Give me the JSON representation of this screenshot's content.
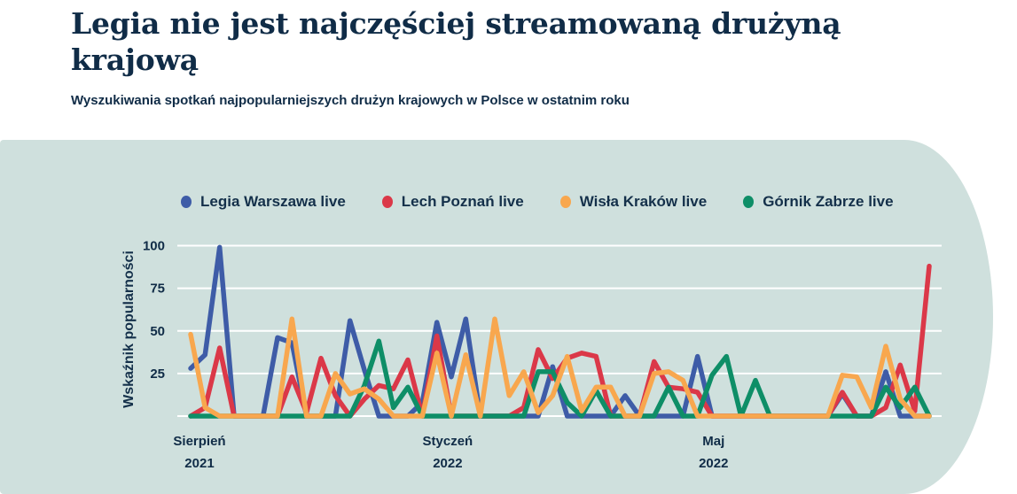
{
  "header": {
    "title": "Legia nie jest najczęściej streamowaną drużyną krajową",
    "subtitle": "Wyszukiwania spotkań najpopularniejszych drużyn krajowych w Polsce w ostatnim roku"
  },
  "colors": {
    "text_navy": "#102c47",
    "panel_background": "#cfe0dd",
    "gridline": "#ffffff",
    "legia_blue": "#3e5ca7",
    "lech_red": "#db3848",
    "wisla_orange": "#f8a74e",
    "gornik_green": "#0e8e67"
  },
  "chart_data": {
    "type": "line",
    "title": "",
    "xlabel": "",
    "ylabel": "Wskaźnik popularności",
    "ylim": [
      0,
      100
    ],
    "yticks": [
      25,
      50,
      75,
      100
    ],
    "grid": true,
    "legend_position": "top",
    "x_unit": "week",
    "x_axis_labels": [
      {
        "month": "Sierpień",
        "year": "2021",
        "pos": 0.012
      },
      {
        "month": "Styczeń",
        "year": "2022",
        "pos": 0.348
      },
      {
        "month": "Maj",
        "year": "2022",
        "pos": 0.708
      }
    ],
    "draw_order": [
      0,
      1,
      3,
      2
    ],
    "series": [
      {
        "name": "Legia Warszawa live",
        "color": "#3e5ca7",
        "values": [
          28,
          36,
          99,
          0,
          0,
          0,
          46,
          43,
          0,
          0,
          0,
          56,
          27,
          0,
          0,
          0,
          8,
          55,
          23,
          57,
          0,
          0,
          0,
          0,
          0,
          29,
          0,
          0,
          0,
          0,
          12,
          0,
          0,
          0,
          0,
          35,
          0,
          0,
          0,
          0,
          0,
          0,
          0,
          0,
          0,
          13,
          0,
          0,
          26,
          0,
          0,
          0
        ]
      },
      {
        "name": "Lech Poznań live",
        "color": "#db3848",
        "values": [
          0,
          5,
          40,
          0,
          0,
          0,
          0,
          23,
          2,
          34,
          12,
          0,
          10,
          18,
          16,
          33,
          0,
          47,
          0,
          0,
          0,
          0,
          0,
          5,
          39,
          22,
          34,
          37,
          35,
          0,
          0,
          0,
          32,
          17,
          16,
          14,
          0,
          0,
          0,
          0,
          0,
          0,
          0,
          0,
          0,
          14,
          0,
          0,
          5,
          30,
          3,
          88
        ]
      },
      {
        "name": "Wisła Kraków live",
        "color": "#f8a74e",
        "values": [
          48,
          5,
          0,
          0,
          0,
          0,
          0,
          57,
          0,
          0,
          25,
          13,
          16,
          10,
          0,
          0,
          0,
          37,
          0,
          36,
          0,
          57,
          12,
          26,
          2,
          12,
          35,
          3,
          17,
          17,
          0,
          0,
          25,
          26,
          21,
          0,
          0,
          0,
          0,
          0,
          0,
          0,
          0,
          0,
          0,
          24,
          23,
          5,
          41,
          10,
          0,
          0
        ]
      },
      {
        "name": "Górnik Zabrze live",
        "color": "#0e8e67",
        "values": [
          0,
          0,
          0,
          0,
          0,
          0,
          0,
          0,
          0,
          0,
          0,
          0,
          18,
          44,
          5,
          17,
          0,
          0,
          0,
          0,
          0,
          0,
          0,
          0,
          26,
          26,
          8,
          0,
          15,
          0,
          0,
          0,
          0,
          17,
          0,
          0,
          24,
          35,
          0,
          21,
          0,
          0,
          0,
          0,
          0,
          0,
          0,
          0,
          17,
          5,
          17,
          0
        ]
      }
    ]
  }
}
